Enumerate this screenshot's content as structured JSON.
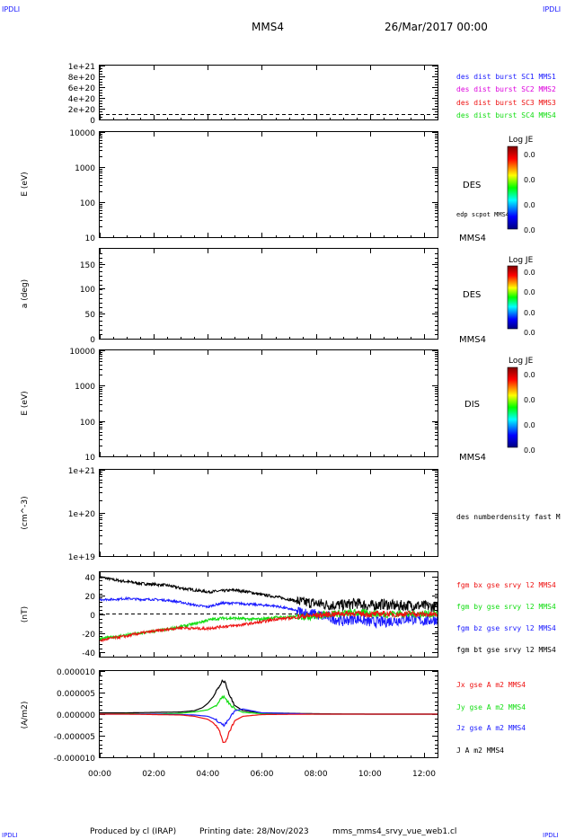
{
  "header": {
    "corner_left": "IPDLI",
    "corner_right": "IPDLI",
    "title": "MMS4",
    "date": "26/Mar/2017 00:00"
  },
  "footer": {
    "produced": "Produced by cl (IRAP)",
    "printing": "Printing date: 28/Nov/2023",
    "filename": "mms_mms4_srvy_vue_web1.cl",
    "corner_left": "IPDLI",
    "corner_right": "IPDLI"
  },
  "colors": {
    "black": "#000000",
    "blue": "#1a1aff",
    "magenta": "#dd00dd",
    "red": "#ee1111",
    "green": "#11dd11"
  },
  "panels": {
    "p1": {
      "y_ticks": [
        "1e+21",
        "8e+20",
        "6e+20",
        "4e+20",
        "2e+20",
        "0"
      ],
      "legend": [
        "des dist burst SC1 MMS1",
        "des dist burst SC2 MMS2",
        "des dist burst SC3 MMS3",
        "des dist burst SC4 MMS4"
      ]
    },
    "p2": {
      "ylabel": "E (eV)",
      "y_ticks": [
        "10000",
        "1000",
        "100",
        "10"
      ],
      "label": "DES",
      "sub_label": "edp scpot MMS4",
      "mms_tag": "MMS4",
      "cbar_title": "Log JE",
      "cbar_ticks": [
        "0.0",
        "0.0",
        "0.0",
        "0.0"
      ]
    },
    "p3": {
      "ylabel": "a (deg)",
      "y_ticks": [
        "150",
        "100",
        "50",
        "0"
      ],
      "label": "DES",
      "mms_tag": "MMS4",
      "cbar_title": "Log JE",
      "cbar_ticks": [
        "0.0",
        "0.0",
        "0.0",
        "0.0"
      ]
    },
    "p4": {
      "ylabel": "E (eV)",
      "y_ticks": [
        "10000",
        "1000",
        "100",
        "10"
      ],
      "label": "DIS",
      "mms_tag": "MMS4",
      "cbar_title": "Log JE",
      "cbar_ticks": [
        "0.0",
        "0.0",
        "0.0",
        "0.0"
      ]
    },
    "p5": {
      "ylabel": "(cm^-3)",
      "y_ticks": [
        "1e+21",
        "1e+20",
        "1e+19"
      ],
      "legend": [
        "des numberdensity fast M"
      ]
    },
    "p6": {
      "ylabel": "(nT)",
      "y_ticks": [
        "40",
        "20",
        "0",
        "-20",
        "-40"
      ],
      "legend": [
        "fgm bx gse srvy l2 MMS4",
        "fgm by gse srvy l2 MMS4",
        "fgm bz gse srvy l2 MMS4",
        "fgm bt gse srvy l2 MMS4"
      ]
    },
    "p7": {
      "ylabel": "(A/m2)",
      "y_ticks": [
        "0.000010",
        "0.000005",
        "0.000000",
        "-0.000005",
        "-0.000010"
      ],
      "legend": [
        "Jx gse A m2 MMS4",
        "Jy gse A m2 MMS4",
        "Jz gse A m2 MMS4",
        "J A m2 MMS4"
      ]
    }
  },
  "x_ticks": [
    "00:00",
    "02:00",
    "04:00",
    "06:00",
    "08:00",
    "10:00",
    "12:00"
  ],
  "chart_data": [
    {
      "type": "line",
      "ylim": [
        0,
        1e+21
      ],
      "series": []
    },
    {
      "type": "heatmap",
      "yscale": "log",
      "ylim": [
        10,
        10000
      ],
      "colorbar": "Log JE"
    },
    {
      "type": "heatmap",
      "ylim": [
        0,
        180
      ],
      "colorbar": "Log JE"
    },
    {
      "type": "heatmap",
      "yscale": "log",
      "ylim": [
        10,
        10000
      ],
      "colorbar": "Log JE"
    },
    {
      "type": "line",
      "yscale": "log",
      "ylim": [
        1e+19,
        1e+21
      ],
      "series": []
    },
    {
      "type": "line",
      "x_unit": "hours",
      "xlim": [
        0,
        12.5
      ],
      "ylim": [
        -45,
        45
      ],
      "series": [
        {
          "name": "fgm bt gse srvy l2 MMS4",
          "color": "#000000",
          "x": [
            0,
            0.5,
            1,
            1.5,
            2,
            2.5,
            3,
            3.5,
            4,
            4.5,
            5,
            5.5,
            6,
            6.5,
            7,
            7.5,
            8,
            8.5,
            9,
            9.5,
            10,
            10.5,
            11,
            11.5,
            12,
            12.5
          ],
          "y": [
            40,
            37,
            35,
            33,
            32,
            31,
            28,
            26,
            24,
            25,
            26,
            24,
            21,
            19,
            16,
            13,
            12,
            10,
            10,
            12,
            9,
            11,
            9,
            10,
            9,
            8
          ]
        },
        {
          "name": "fgm bz gse srvy l2 MMS4",
          "color": "#1a1aff",
          "x": [
            0,
            0.5,
            1,
            1.5,
            2,
            2.5,
            3,
            3.5,
            4,
            4.5,
            5,
            5.5,
            6,
            6.5,
            7,
            7.5,
            8,
            8.5,
            9,
            9.5,
            10,
            10.5,
            11,
            11.5,
            12,
            12.5
          ],
          "y": [
            16,
            16,
            17,
            16,
            16,
            15,
            13,
            10,
            8,
            12,
            12,
            11,
            10,
            9,
            6,
            2,
            0,
            -3,
            -7,
            -4,
            -8,
            -8,
            -6,
            -4,
            -7,
            -5
          ]
        },
        {
          "name": "fgm by gse srvy l2 MMS4",
          "color": "#11dd11",
          "x": [
            0,
            0.5,
            1,
            1.5,
            2,
            2.5,
            3,
            3.5,
            4,
            4.5,
            5,
            5.5,
            6,
            6.5,
            7,
            7.5,
            8,
            8.5,
            9,
            9.5,
            10,
            10.5,
            11,
            11.5,
            12,
            12.5
          ],
          "y": [
            -26,
            -24,
            -22,
            -20,
            -18,
            -16,
            -13,
            -10,
            -6,
            -4,
            -4,
            -5,
            -5,
            -3,
            -3,
            -2,
            -2,
            1,
            1,
            2,
            1,
            0,
            1,
            0,
            1,
            0
          ]
        },
        {
          "name": "fgm bx gse srvy l2 MMS4",
          "color": "#ee1111",
          "x": [
            0,
            0.5,
            1,
            1.5,
            2,
            2.5,
            3,
            3.5,
            4,
            4.5,
            5,
            5.5,
            6,
            6.5,
            7,
            7.5,
            8,
            8.5,
            9,
            9.5,
            10,
            10.5,
            11,
            11.5,
            12,
            12.5
          ],
          "y": [
            -28,
            -25,
            -23,
            -20,
            -18,
            -16,
            -14,
            -15,
            -15,
            -13,
            -12,
            -10,
            -8,
            -5,
            -4,
            -2,
            -1,
            0,
            1,
            1,
            0,
            1,
            0,
            1,
            0,
            0
          ]
        }
      ]
    },
    {
      "type": "line",
      "x_unit": "hours",
      "xlim": [
        0,
        12.5
      ],
      "ylim": [
        -1e-05,
        1e-05
      ],
      "series": [
        {
          "name": "J A m2 MMS4",
          "color": "#000000",
          "x": [
            0,
            1,
            2,
            3,
            3.5,
            3.8,
            4,
            4.2,
            4.4,
            4.55,
            4.65,
            4.8,
            5,
            5.3,
            6,
            7,
            8,
            10,
            12.5
          ],
          "y": [
            3e-07,
            3e-07,
            4e-07,
            5e-07,
            8e-07,
            1.5e-06,
            2.5e-06,
            4e-06,
            6.2e-06,
            7.8e-06,
            7.4e-06,
            4.5e-06,
            2e-06,
            8e-07,
            3e-07,
            2e-07,
            1e-07,
            0,
            0
          ]
        },
        {
          "name": "Jy gse A m2 MMS4",
          "color": "#11dd11",
          "x": [
            0,
            1,
            2,
            3,
            3.5,
            4,
            4.3,
            4.5,
            4.6,
            4.75,
            5,
            5.3,
            6,
            8,
            12.5
          ],
          "y": [
            0,
            1e-07,
            0,
            2e-07,
            5e-07,
            1e-06,
            2e-06,
            3.8e-06,
            4e-06,
            2.8e-06,
            1.2e-06,
            4e-07,
            1e-07,
            0,
            0
          ]
        },
        {
          "name": "Jz gse A m2 MMS4",
          "color": "#1a1aff",
          "x": [
            0,
            1,
            2,
            3,
            3.5,
            4,
            4.2,
            4.4,
            4.6,
            4.75,
            5,
            5.3,
            6,
            8,
            12.5
          ],
          "y": [
            0,
            0,
            0,
            -1e-07,
            -2e-07,
            -5e-07,
            -1e-06,
            -1.7e-06,
            -2.7e-06,
            -1.5e-06,
            8e-07,
            1.2e-06,
            3e-07,
            0,
            0
          ]
        },
        {
          "name": "Jx gse A m2 MMS4",
          "color": "#ee1111",
          "x": [
            0,
            1,
            2,
            3,
            3.5,
            4,
            4.2,
            4.4,
            4.55,
            4.65,
            4.8,
            5,
            5.3,
            6,
            8,
            12.5
          ],
          "y": [
            0,
            0,
            -1e-07,
            -2e-07,
            -5e-07,
            -1.2e-06,
            -2e-06,
            -3.5e-06,
            -6.2e-06,
            -6.7e-06,
            -4e-06,
            -1.5e-06,
            -5e-07,
            -1e-07,
            0,
            0
          ]
        }
      ]
    }
  ]
}
